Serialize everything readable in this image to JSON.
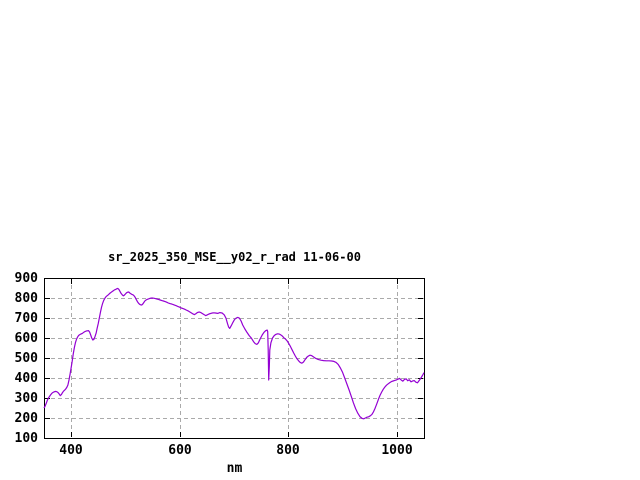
{
  "chart_data": {
    "type": "line",
    "title": "sr_2025_350_MSE__y02_r_rad 11-06-00",
    "xlabel": "nm",
    "ylabel": "",
    "xlim": [
      350,
      1050
    ],
    "ylim": [
      100,
      900
    ],
    "xticks": [
      400,
      600,
      800,
      1000
    ],
    "yticks": [
      100,
      200,
      300,
      400,
      500,
      600,
      700,
      800,
      900
    ],
    "grid": true,
    "legend_position": "none",
    "colors": {
      "line": "#9400D3",
      "grid": "#aaaaaa",
      "frame": "#000000",
      "background": "#ffffff"
    },
    "series": [
      {
        "color": "#9400D3",
        "points": [
          [
            350,
            250
          ],
          [
            352,
            259
          ],
          [
            354,
            273
          ],
          [
            356,
            288
          ],
          [
            358,
            299
          ],
          [
            360,
            307
          ],
          [
            362,
            315
          ],
          [
            364,
            322
          ],
          [
            366,
            327
          ],
          [
            368,
            330
          ],
          [
            370,
            332
          ],
          [
            372,
            333
          ],
          [
            374,
            331
          ],
          [
            376,
            327
          ],
          [
            378,
            320
          ],
          [
            380,
            312
          ],
          [
            382,
            317
          ],
          [
            384,
            327
          ],
          [
            386,
            334
          ],
          [
            388,
            339
          ],
          [
            390,
            345
          ],
          [
            392,
            353
          ],
          [
            394,
            365
          ],
          [
            396,
            390
          ],
          [
            398,
            420
          ],
          [
            400,
            450
          ],
          [
            402,
            484
          ],
          [
            404,
            522
          ],
          [
            406,
            553
          ],
          [
            408,
            578
          ],
          [
            410,
            595
          ],
          [
            412,
            606
          ],
          [
            414,
            613
          ],
          [
            416,
            617
          ],
          [
            418,
            620
          ],
          [
            420,
            622
          ],
          [
            422,
            626
          ],
          [
            424,
            630
          ],
          [
            426,
            633
          ],
          [
            428,
            635
          ],
          [
            430,
            636
          ],
          [
            432,
            637
          ],
          [
            434,
            630
          ],
          [
            436,
            615
          ],
          [
            438,
            599
          ],
          [
            440,
            590
          ],
          [
            442,
            593
          ],
          [
            444,
            607
          ],
          [
            446,
            624
          ],
          [
            448,
            650
          ],
          [
            450,
            674
          ],
          [
            452,
            702
          ],
          [
            454,
            730
          ],
          [
            456,
            753
          ],
          [
            458,
            773
          ],
          [
            460,
            788
          ],
          [
            462,
            798
          ],
          [
            464,
            806
          ],
          [
            466,
            811
          ],
          [
            468,
            815
          ],
          [
            470,
            820
          ],
          [
            472,
            825
          ],
          [
            474,
            829
          ],
          [
            476,
            833
          ],
          [
            478,
            837
          ],
          [
            480,
            841
          ],
          [
            482,
            843
          ],
          [
            484,
            846
          ],
          [
            486,
            848
          ],
          [
            488,
            843
          ],
          [
            490,
            833
          ],
          [
            492,
            823
          ],
          [
            494,
            816
          ],
          [
            496,
            811
          ],
          [
            498,
            814
          ],
          [
            500,
            820
          ],
          [
            502,
            826
          ],
          [
            504,
            829
          ],
          [
            506,
            830
          ],
          [
            508,
            825
          ],
          [
            510,
            821
          ],
          [
            512,
            818
          ],
          [
            514,
            816
          ],
          [
            516,
            811
          ],
          [
            518,
            803
          ],
          [
            520,
            792
          ],
          [
            522,
            782
          ],
          [
            524,
            774
          ],
          [
            526,
            769
          ],
          [
            528,
            766
          ],
          [
            530,
            765
          ],
          [
            532,
            770
          ],
          [
            534,
            778
          ],
          [
            536,
            786
          ],
          [
            538,
            790
          ],
          [
            540,
            793
          ],
          [
            543,
            796
          ],
          [
            546,
            799
          ],
          [
            549,
            800
          ],
          [
            552,
            799
          ],
          [
            555,
            797
          ],
          [
            558,
            795
          ],
          [
            561,
            793
          ],
          [
            564,
            790
          ],
          [
            567,
            787
          ],
          [
            570,
            785
          ],
          [
            573,
            782
          ],
          [
            576,
            779
          ],
          [
            579,
            775
          ],
          [
            582,
            772
          ],
          [
            585,
            770
          ],
          [
            588,
            767
          ],
          [
            591,
            764
          ],
          [
            594,
            761
          ],
          [
            597,
            757
          ],
          [
            600,
            754
          ],
          [
            603,
            750
          ],
          [
            606,
            747
          ],
          [
            609,
            744
          ],
          [
            612,
            740
          ],
          [
            615,
            736
          ],
          [
            618,
            731
          ],
          [
            621,
            726
          ],
          [
            624,
            721
          ],
          [
            627,
            717
          ],
          [
            630,
            722
          ],
          [
            633,
            728
          ],
          [
            636,
            730
          ],
          [
            639,
            727
          ],
          [
            642,
            722
          ],
          [
            645,
            717
          ],
          [
            648,
            712
          ],
          [
            651,
            716
          ],
          [
            654,
            720
          ],
          [
            657,
            723
          ],
          [
            660,
            725
          ],
          [
            663,
            726
          ],
          [
            666,
            725
          ],
          [
            670,
            723
          ],
          [
            674,
            727
          ],
          [
            678,
            725
          ],
          [
            682,
            716
          ],
          [
            685,
            700
          ],
          [
            688,
            672
          ],
          [
            690,
            655
          ],
          [
            692,
            648
          ],
          [
            695,
            662
          ],
          [
            698,
            678
          ],
          [
            701,
            692
          ],
          [
            704,
            700
          ],
          [
            707,
            703
          ],
          [
            710,
            699
          ],
          [
            713,
            685
          ],
          [
            716,
            665
          ],
          [
            720,
            645
          ],
          [
            724,
            628
          ],
          [
            728,
            612
          ],
          [
            732,
            599
          ],
          [
            736,
            582
          ],
          [
            739,
            572
          ],
          [
            742,
            568
          ],
          [
            745,
            576
          ],
          [
            748,
            595
          ],
          [
            752,
            615
          ],
          [
            755,
            628
          ],
          [
            758,
            636
          ],
          [
            761,
            640
          ],
          [
            762,
            632
          ],
          [
            763,
            540
          ],
          [
            764,
            390
          ],
          [
            765,
            455
          ],
          [
            766,
            540
          ],
          [
            768,
            576
          ],
          [
            771,
            600
          ],
          [
            774,
            612
          ],
          [
            777,
            618
          ],
          [
            780,
            621
          ],
          [
            783,
            620
          ],
          [
            786,
            616
          ],
          [
            789,
            610
          ],
          [
            792,
            601
          ],
          [
            795,
            594
          ],
          [
            798,
            585
          ],
          [
            801,
            572
          ],
          [
            804,
            557
          ],
          [
            807,
            541
          ],
          [
            810,
            525
          ],
          [
            813,
            510
          ],
          [
            816,
            496
          ],
          [
            819,
            486
          ],
          [
            822,
            478
          ],
          [
            825,
            474
          ],
          [
            828,
            480
          ],
          [
            831,
            492
          ],
          [
            834,
            503
          ],
          [
            837,
            510
          ],
          [
            840,
            514
          ],
          [
            843,
            512
          ],
          [
            846,
            506
          ],
          [
            850,
            499
          ],
          [
            855,
            493
          ],
          [
            860,
            489
          ],
          [
            865,
            487
          ],
          [
            870,
            486
          ],
          [
            875,
            486
          ],
          [
            880,
            485
          ],
          [
            884,
            483
          ],
          [
            888,
            478
          ],
          [
            892,
            468
          ],
          [
            896,
            450
          ],
          [
            900,
            428
          ],
          [
            904,
            400
          ],
          [
            908,
            370
          ],
          [
            912,
            340
          ],
          [
            916,
            308
          ],
          [
            920,
            276
          ],
          [
            924,
            247
          ],
          [
            928,
            224
          ],
          [
            932,
            207
          ],
          [
            936,
            198
          ],
          [
            939,
            196
          ],
          [
            942,
            200
          ],
          [
            945,
            204
          ],
          [
            948,
            206
          ],
          [
            951,
            211
          ],
          [
            954,
            218
          ],
          [
            957,
            231
          ],
          [
            960,
            249
          ],
          [
            963,
            271
          ],
          [
            966,
            293
          ],
          [
            969,
            313
          ],
          [
            972,
            330
          ],
          [
            975,
            344
          ],
          [
            978,
            355
          ],
          [
            981,
            364
          ],
          [
            984,
            371
          ],
          [
            987,
            377
          ],
          [
            990,
            382
          ],
          [
            993,
            385
          ],
          [
            996,
            388
          ],
          [
            999,
            390
          ],
          [
            1002,
            394
          ],
          [
            1005,
            398
          ],
          [
            1008,
            390
          ],
          [
            1011,
            384
          ],
          [
            1014,
            393
          ],
          [
            1017,
            396
          ],
          [
            1020,
            386
          ],
          [
            1023,
            391
          ],
          [
            1026,
            381
          ],
          [
            1029,
            385
          ],
          [
            1032,
            387
          ],
          [
            1035,
            379
          ],
          [
            1038,
            376
          ],
          [
            1041,
            387
          ],
          [
            1044,
            398
          ],
          [
            1047,
            412
          ],
          [
            1050,
            427
          ]
        ]
      }
    ]
  }
}
